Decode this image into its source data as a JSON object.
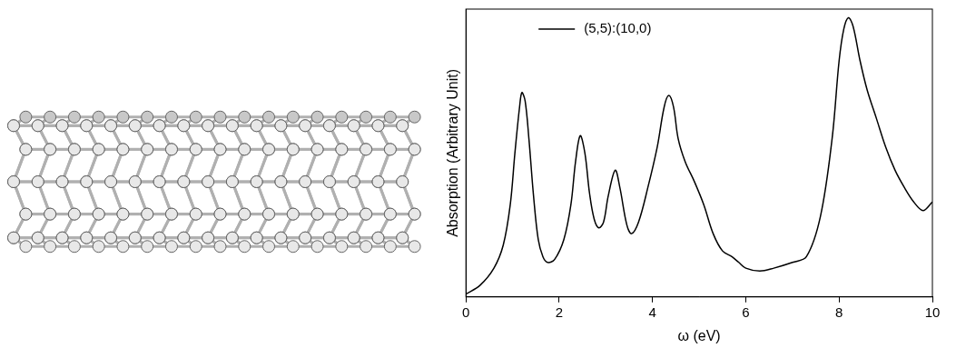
{
  "chart_data": {
    "type": "line",
    "x_label": "ω (eV)",
    "y_label": "Absorption (Arbitrary Unit)",
    "x": [
      0,
      0.3,
      0.6,
      0.8,
      0.95,
      1.05,
      1.15,
      1.2,
      1.27,
      1.35,
      1.45,
      1.55,
      1.65,
      1.75,
      1.9,
      2.1,
      2.25,
      2.35,
      2.45,
      2.55,
      2.65,
      2.75,
      2.85,
      2.95,
      3.05,
      3.2,
      3.3,
      3.45,
      3.55,
      3.7,
      3.9,
      4.1,
      4.25,
      4.35,
      4.45,
      4.55,
      4.7,
      4.9,
      5.1,
      5.3,
      5.5,
      5.7,
      5.85,
      6.0,
      6.3,
      6.6,
      7.0,
      7.3,
      7.6,
      7.85,
      8.0,
      8.1,
      8.2,
      8.3,
      8.45,
      8.6,
      8.8,
      9.0,
      9.2,
      9.4,
      9.6,
      9.8,
      10
    ],
    "series": [
      {
        "name": "(5,5):(10,0)",
        "color": "#000000",
        "values": [
          0.01,
          0.04,
          0.1,
          0.18,
          0.32,
          0.5,
          0.66,
          0.71,
          0.68,
          0.55,
          0.35,
          0.2,
          0.14,
          0.12,
          0.13,
          0.2,
          0.32,
          0.47,
          0.56,
          0.5,
          0.36,
          0.27,
          0.24,
          0.26,
          0.35,
          0.44,
          0.38,
          0.25,
          0.22,
          0.26,
          0.38,
          0.52,
          0.66,
          0.7,
          0.66,
          0.55,
          0.47,
          0.4,
          0.32,
          0.22,
          0.16,
          0.14,
          0.12,
          0.1,
          0.09,
          0.1,
          0.12,
          0.14,
          0.28,
          0.55,
          0.82,
          0.93,
          0.97,
          0.94,
          0.82,
          0.72,
          0.62,
          0.52,
          0.44,
          0.38,
          0.33,
          0.3,
          0.33
        ]
      }
    ],
    "xlim": [
      0,
      10
    ],
    "xticks": [
      0,
      2,
      4,
      6,
      8,
      10
    ],
    "ylim": [
      0,
      1
    ],
    "tick_labels": "x",
    "grid": false,
    "legend": "upper left"
  }
}
